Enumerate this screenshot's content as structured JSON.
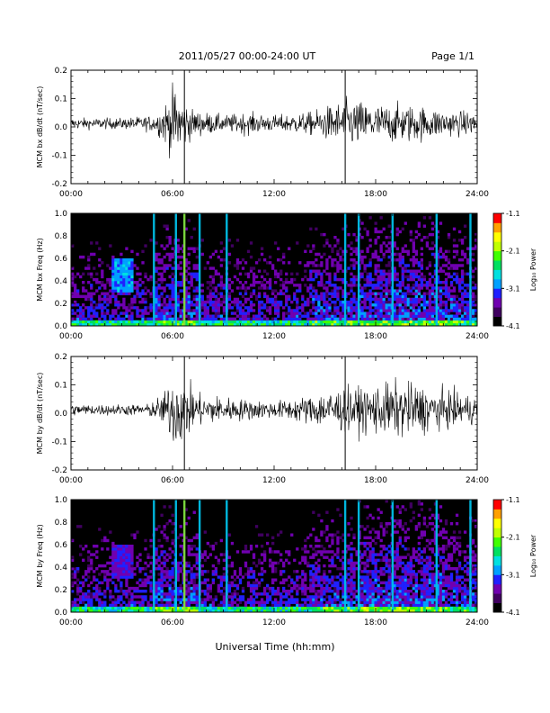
{
  "header": {
    "title": "2011/05/27  00:00-24:00 UT",
    "page": "Page 1/1"
  },
  "figure": {
    "xlabel": "Universal Time (hh:mm)",
    "x_tick_labels": [
      "00:00",
      "06:00",
      "12:00",
      "18:00",
      "24:00"
    ]
  },
  "colorbar": {
    "label": "Log₁₀ Power",
    "tick_labels": [
      "-1.1",
      "-2.1",
      "-3.1",
      "-4.1"
    ],
    "colors": [
      "#000000",
      "#400060",
      "#7000b0",
      "#2020ff",
      "#00a0ff",
      "#00e0e0",
      "#00e060",
      "#40ff00",
      "#c0ff00",
      "#ffff00",
      "#ffa000",
      "#ff0000"
    ]
  },
  "chart_data": [
    {
      "type": "line",
      "ylabel": "MCM bx dB/dt (nT/sec)",
      "xlim": [
        0,
        24
      ],
      "ylim": [
        -0.2,
        0.2
      ],
      "y_tick_labels": [
        "0.2",
        "0.1",
        "0.0",
        "-0.1",
        "-0.2"
      ],
      "markers_hours": [
        6.7,
        16.2
      ],
      "envelope": [
        {
          "t": 0,
          "amp": 0.02
        },
        {
          "t": 3,
          "amp": 0.02
        },
        {
          "t": 5,
          "amp": 0.03
        },
        {
          "t": 5.8,
          "amp": 0.1
        },
        {
          "t": 6.1,
          "amp": 0.14
        },
        {
          "t": 6.5,
          "amp": 0.1
        },
        {
          "t": 7.2,
          "amp": 0.05
        },
        {
          "t": 9,
          "amp": 0.03
        },
        {
          "t": 10.3,
          "amp": 0.04
        },
        {
          "t": 12,
          "amp": 0.03
        },
        {
          "t": 14,
          "amp": 0.04
        },
        {
          "t": 15.5,
          "amp": 0.07
        },
        {
          "t": 16.5,
          "amp": 0.09
        },
        {
          "t": 18,
          "amp": 0.07
        },
        {
          "t": 20,
          "amp": 0.07
        },
        {
          "t": 22,
          "amp": 0.05
        },
        {
          "t": 24,
          "amp": 0.04
        }
      ]
    },
    {
      "type": "heatmap",
      "ylabel": "MCM bx Freq (Hz)",
      "xlim": [
        0,
        24
      ],
      "ylim": [
        0,
        1
      ],
      "y_tick_labels": [
        "1.0",
        "0.8",
        "0.6",
        "0.4",
        "0.2",
        "0.0"
      ],
      "zlim": [
        -4.1,
        -1.1
      ],
      "spectral_lines_hours": [
        4.9,
        6.2,
        6.7,
        7.6,
        9.2,
        16.2,
        17.0,
        19.0,
        21.6,
        23.6
      ],
      "features": [
        {
          "t": 3.0,
          "f": 0.45,
          "power": -2.8
        }
      ]
    },
    {
      "type": "line",
      "ylabel": "MCM by dB/dt (nT/sec)",
      "xlim": [
        0,
        24
      ],
      "ylim": [
        -0.2,
        0.2
      ],
      "y_tick_labels": [
        "0.2",
        "0.1",
        "0.0",
        "-0.1",
        "-0.2"
      ],
      "markers_hours": [
        6.7,
        16.2
      ],
      "envelope": [
        {
          "t": 0,
          "amp": 0.02
        },
        {
          "t": 4.5,
          "amp": 0.02
        },
        {
          "t": 5.5,
          "amp": 0.06
        },
        {
          "t": 6.1,
          "amp": 0.14
        },
        {
          "t": 6.6,
          "amp": 0.12
        },
        {
          "t": 7.5,
          "amp": 0.06
        },
        {
          "t": 10,
          "amp": 0.04
        },
        {
          "t": 12,
          "amp": 0.03
        },
        {
          "t": 14,
          "amp": 0.05
        },
        {
          "t": 15.5,
          "amp": 0.08
        },
        {
          "t": 17,
          "amp": 0.08
        },
        {
          "t": 19,
          "amp": 0.1
        },
        {
          "t": 20,
          "amp": 0.1
        },
        {
          "t": 22,
          "amp": 0.07
        },
        {
          "t": 24,
          "amp": 0.05
        }
      ]
    },
    {
      "type": "heatmap",
      "ylabel": "MCM by Freq (Hz)",
      "xlim": [
        0,
        24
      ],
      "ylim": [
        0,
        1
      ],
      "y_tick_labels": [
        "1.0",
        "0.8",
        "0.6",
        "0.4",
        "0.2",
        "0.0"
      ],
      "zlim": [
        -4.1,
        -1.1
      ],
      "spectral_lines_hours": [
        4.9,
        6.2,
        6.7,
        7.6,
        9.2,
        16.2,
        17.0,
        19.0,
        21.6,
        23.6
      ],
      "features": [
        {
          "t": 3.0,
          "f": 0.45,
          "power": -3.2
        }
      ]
    }
  ]
}
